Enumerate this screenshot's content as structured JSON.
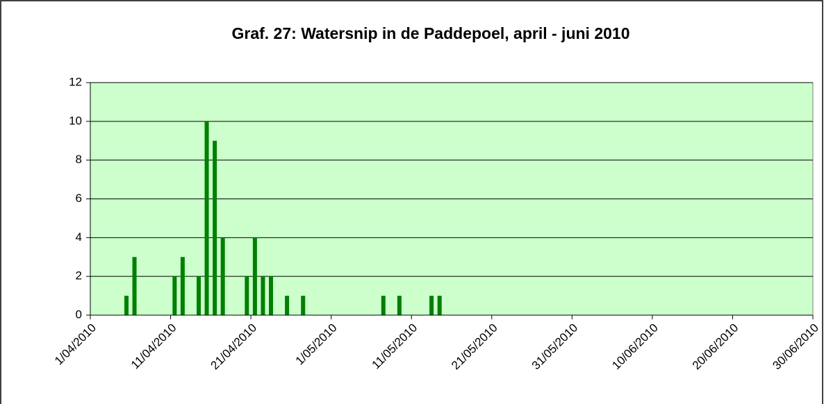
{
  "chart_data": {
    "type": "bar",
    "title": "Graf. 27: Watersnip in de Paddepoel, april - juni 2010",
    "x": [
      "5/04/2010",
      "6/04/2010",
      "11/04/2010",
      "12/04/2010",
      "14/04/2010",
      "15/04/2010",
      "16/04/2010",
      "17/04/2010",
      "20/04/2010",
      "21/04/2010",
      "22/04/2010",
      "23/04/2010",
      "25/04/2010",
      "27/04/2010",
      "7/05/2010",
      "9/05/2010",
      "13/05/2010",
      "14/05/2010"
    ],
    "values": [
      1,
      3,
      2,
      3,
      2,
      10,
      9,
      4,
      2,
      4,
      2,
      2,
      1,
      1,
      1,
      1,
      1,
      1
    ],
    "color": "#008000",
    "xlim": [
      "1/04/2010",
      "30/06/2010"
    ],
    "xticks": [
      "1/04/2010",
      "11/04/2010",
      "21/04/2010",
      "1/05/2010",
      "11/05/2010",
      "21/05/2010",
      "31/05/2010",
      "10/06/2010",
      "20/06/2010",
      "30/06/2010"
    ],
    "ylim": [
      0,
      12
    ],
    "yticks": [
      0,
      2,
      4,
      6,
      8,
      10,
      12
    ],
    "grid": true,
    "background": "#ccffcc"
  }
}
